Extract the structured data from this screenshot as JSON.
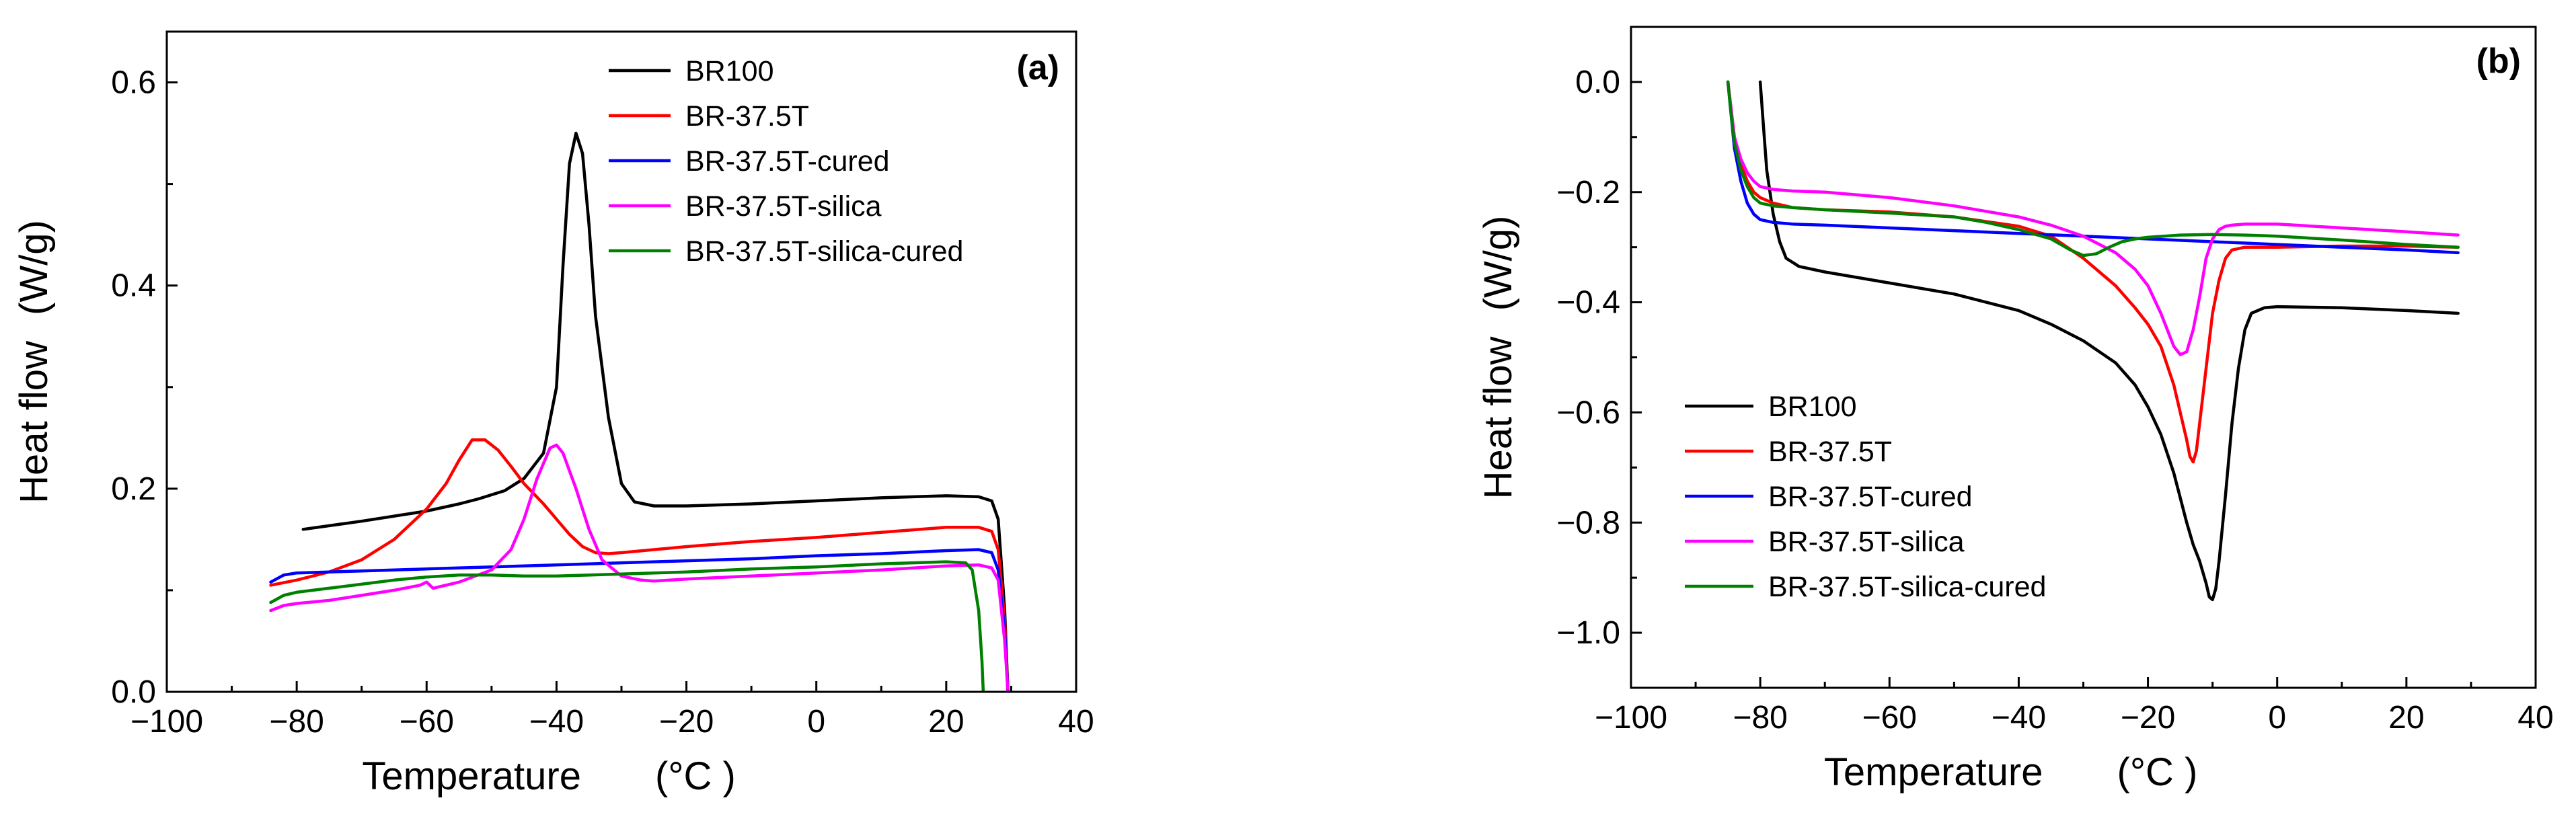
{
  "chart_data": [
    {
      "type": "line",
      "panel_label": "(a)",
      "xlabel": "Temperature",
      "xunit": "(°C )",
      "ylabel": "Heat flow",
      "yunit": "(W/g)",
      "xlim": [
        -100,
        40
      ],
      "ylim": [
        0.0,
        0.65
      ],
      "xticks": [
        -100,
        -80,
        -60,
        -40,
        -20,
        0,
        20,
        40
      ],
      "yticks": [
        0.0,
        0.2,
        0.4,
        0.6
      ],
      "xtick_labels": [
        "−100",
        "−80",
        "−60",
        "−40",
        "−20",
        "0",
        "20",
        "40"
      ],
      "ytick_labels": [
        "0.0",
        "0.2",
        "0.4",
        "0.6"
      ],
      "grid": false,
      "legend_position": "top-right",
      "series": [
        {
          "name": "BR100",
          "color": "#000000",
          "x": [
            -79,
            -70,
            -60,
            -55,
            -52,
            -48,
            -45,
            -42,
            -40,
            -39,
            -38,
            -37,
            -36,
            -35,
            -34,
            -32,
            -30,
            -28,
            -25,
            -20,
            -10,
            0,
            10,
            20,
            25,
            27,
            28,
            29,
            29.5
          ],
          "y": [
            0.16,
            0.168,
            0.178,
            0.185,
            0.19,
            0.198,
            0.21,
            0.235,
            0.3,
            0.42,
            0.52,
            0.55,
            0.53,
            0.46,
            0.37,
            0.27,
            0.205,
            0.187,
            0.183,
            0.183,
            0.185,
            0.188,
            0.191,
            0.193,
            0.192,
            0.188,
            0.17,
            0.08,
            0.0
          ]
        },
        {
          "name": "BR-37.5T",
          "color": "#ff0000",
          "x": [
            -84,
            -80,
            -75,
            -70,
            -65,
            -60,
            -57,
            -55,
            -53,
            -51,
            -49,
            -47,
            -45,
            -42,
            -40,
            -38,
            -36,
            -34,
            -32,
            -30,
            -25,
            -20,
            -10,
            0,
            10,
            20,
            25,
            27,
            28,
            29,
            29.5
          ],
          "y": [
            0.105,
            0.11,
            0.118,
            0.13,
            0.15,
            0.18,
            0.205,
            0.228,
            0.248,
            0.248,
            0.238,
            0.222,
            0.205,
            0.185,
            0.17,
            0.155,
            0.143,
            0.137,
            0.136,
            0.137,
            0.14,
            0.143,
            0.148,
            0.152,
            0.157,
            0.162,
            0.162,
            0.158,
            0.14,
            0.07,
            0.0
          ]
        },
        {
          "name": "BR-37.5T-cured",
          "color": "#0000ff",
          "x": [
            -84,
            -82,
            -80,
            -70,
            -60,
            -50,
            -40,
            -30,
            -20,
            -10,
            0,
            10,
            20,
            25,
            27,
            28,
            29,
            29.5
          ],
          "y": [
            0.108,
            0.115,
            0.117,
            0.119,
            0.121,
            0.123,
            0.125,
            0.127,
            0.129,
            0.131,
            0.134,
            0.136,
            0.139,
            0.14,
            0.137,
            0.12,
            0.06,
            0.0
          ]
        },
        {
          "name": "BR-37.5T-silica",
          "color": "#ff00ff",
          "x": [
            -84,
            -82,
            -80,
            -75,
            -70,
            -65,
            -61,
            -60,
            -59,
            -55,
            -50,
            -47,
            -45,
            -43,
            -41,
            -40,
            -39,
            -37,
            -35,
            -33,
            -30,
            -27,
            -25,
            -20,
            -10,
            0,
            10,
            20,
            25,
            27,
            28,
            29,
            29.5
          ],
          "y": [
            0.08,
            0.085,
            0.087,
            0.09,
            0.095,
            0.1,
            0.105,
            0.108,
            0.102,
            0.108,
            0.12,
            0.14,
            0.17,
            0.21,
            0.24,
            0.243,
            0.235,
            0.2,
            0.16,
            0.13,
            0.114,
            0.11,
            0.109,
            0.111,
            0.114,
            0.117,
            0.12,
            0.124,
            0.125,
            0.122,
            0.11,
            0.05,
            0.0
          ]
        },
        {
          "name": "BR-37.5T-silica-cured",
          "color": "#008000",
          "x": [
            -84,
            -82,
            -80,
            -75,
            -70,
            -65,
            -60,
            -55,
            -50,
            -45,
            -40,
            -30,
            -20,
            -10,
            0,
            10,
            20,
            23,
            24,
            25,
            25.5,
            25.7
          ],
          "y": [
            0.088,
            0.095,
            0.098,
            0.102,
            0.106,
            0.11,
            0.113,
            0.115,
            0.115,
            0.114,
            0.114,
            0.116,
            0.118,
            0.121,
            0.123,
            0.126,
            0.128,
            0.127,
            0.12,
            0.08,
            0.03,
            0.0
          ]
        }
      ]
    },
    {
      "type": "line",
      "panel_label": "(b)",
      "xlabel": "Temperature",
      "xunit": "(°C )",
      "ylabel": "Heat flow",
      "yunit": "(W/g)",
      "xlim": [
        -100,
        40
      ],
      "ylim": [
        -1.1,
        0.1
      ],
      "xticks": [
        -100,
        -80,
        -60,
        -40,
        -20,
        0,
        20,
        40
      ],
      "yticks": [
        -1.0,
        -0.8,
        -0.6,
        -0.4,
        -0.2,
        0.0
      ],
      "xtick_labels": [
        "−100",
        "−80",
        "−60",
        "−40",
        "−20",
        "0",
        "20",
        "40"
      ],
      "ytick_labels": [
        "−1.0",
        "−0.8",
        "−0.6",
        "−0.4",
        "−0.2",
        "0.0"
      ],
      "grid": false,
      "legend_position": "bottom-left",
      "series": [
        {
          "name": "BR100",
          "color": "#000000",
          "x": [
            -80,
            -79.5,
            -79,
            -78,
            -77,
            -76,
            -74,
            -70,
            -60,
            -50,
            -40,
            -35,
            -30,
            -25,
            -22,
            -20,
            -18,
            -16,
            -14,
            -13,
            -12,
            -11,
            -10.5,
            -10,
            -9.5,
            -9,
            -8,
            -7,
            -6,
            -5,
            -4,
            -2,
            0,
            10,
            20,
            28
          ],
          "y": [
            0.0,
            -0.08,
            -0.16,
            -0.24,
            -0.29,
            -0.32,
            -0.335,
            -0.345,
            -0.365,
            -0.385,
            -0.415,
            -0.44,
            -0.47,
            -0.51,
            -0.55,
            -0.59,
            -0.64,
            -0.71,
            -0.8,
            -0.84,
            -0.87,
            -0.91,
            -0.935,
            -0.94,
            -0.92,
            -0.87,
            -0.75,
            -0.62,
            -0.52,
            -0.45,
            -0.42,
            -0.41,
            -0.408,
            -0.41,
            -0.415,
            -0.42
          ]
        },
        {
          "name": "BR-37.5T",
          "color": "#ff0000",
          "x": [
            -85,
            -84.5,
            -84,
            -83,
            -82,
            -81,
            -80,
            -78,
            -75,
            -70,
            -60,
            -50,
            -40,
            -35,
            -30,
            -25,
            -22,
            -20,
            -18,
            -16,
            -15,
            -14,
            -13.5,
            -13,
            -12.5,
            -12,
            -11,
            -10,
            -9,
            -8,
            -7,
            -5,
            0,
            10,
            20,
            28
          ],
          "y": [
            0.0,
            -0.05,
            -0.1,
            -0.15,
            -0.18,
            -0.2,
            -0.21,
            -0.22,
            -0.228,
            -0.232,
            -0.236,
            -0.245,
            -0.262,
            -0.28,
            -0.32,
            -0.37,
            -0.41,
            -0.44,
            -0.48,
            -0.55,
            -0.6,
            -0.65,
            -0.68,
            -0.69,
            -0.67,
            -0.62,
            -0.52,
            -0.42,
            -0.36,
            -0.32,
            -0.305,
            -0.3,
            -0.3,
            -0.298,
            -0.298,
            -0.3
          ]
        },
        {
          "name": "BR-37.5T-cured",
          "color": "#0000ff",
          "x": [
            -85,
            -84.5,
            -84,
            -83,
            -82,
            -81,
            -80,
            -78,
            -75,
            -70,
            -60,
            -50,
            -40,
            -30,
            -20,
            -10,
            0,
            10,
            20,
            28
          ],
          "y": [
            0.0,
            -0.06,
            -0.12,
            -0.18,
            -0.22,
            -0.24,
            -0.25,
            -0.255,
            -0.258,
            -0.26,
            -0.265,
            -0.27,
            -0.275,
            -0.28,
            -0.285,
            -0.29,
            -0.295,
            -0.3,
            -0.305,
            -0.31
          ]
        },
        {
          "name": "BR-37.5T-silica",
          "color": "#ff00ff",
          "x": [
            -85,
            -84.5,
            -84,
            -83,
            -82,
            -81,
            -80,
            -78,
            -75,
            -70,
            -60,
            -50,
            -40,
            -35,
            -30,
            -25,
            -22,
            -20,
            -18,
            -17,
            -16,
            -15,
            -14,
            -13,
            -12,
            -11,
            -10,
            -9,
            -8,
            -7,
            -5,
            0,
            10,
            20,
            28
          ],
          "y": [
            0.0,
            -0.05,
            -0.1,
            -0.14,
            -0.165,
            -0.18,
            -0.19,
            -0.195,
            -0.198,
            -0.2,
            -0.21,
            -0.225,
            -0.245,
            -0.26,
            -0.28,
            -0.31,
            -0.34,
            -0.37,
            -0.42,
            -0.45,
            -0.48,
            -0.495,
            -0.49,
            -0.45,
            -0.39,
            -0.32,
            -0.285,
            -0.268,
            -0.262,
            -0.26,
            -0.258,
            -0.258,
            -0.265,
            -0.272,
            -0.278
          ]
        },
        {
          "name": "BR-37.5T-silica-cured",
          "color": "#008000",
          "x": [
            -85,
            -84.5,
            -84,
            -83,
            -82,
            -81,
            -80,
            -78,
            -75,
            -70,
            -60,
            -50,
            -45,
            -40,
            -35,
            -32,
            -30,
            -28,
            -26,
            -24,
            -22,
            -20,
            -15,
            -10,
            -5,
            0,
            10,
            20,
            28
          ],
          "y": [
            0.0,
            -0.06,
            -0.11,
            -0.16,
            -0.19,
            -0.21,
            -0.22,
            -0.225,
            -0.228,
            -0.232,
            -0.238,
            -0.245,
            -0.255,
            -0.268,
            -0.285,
            -0.305,
            -0.315,
            -0.312,
            -0.3,
            -0.29,
            -0.285,
            -0.282,
            -0.278,
            -0.277,
            -0.278,
            -0.28,
            -0.287,
            -0.295,
            -0.3
          ]
        }
      ]
    }
  ]
}
